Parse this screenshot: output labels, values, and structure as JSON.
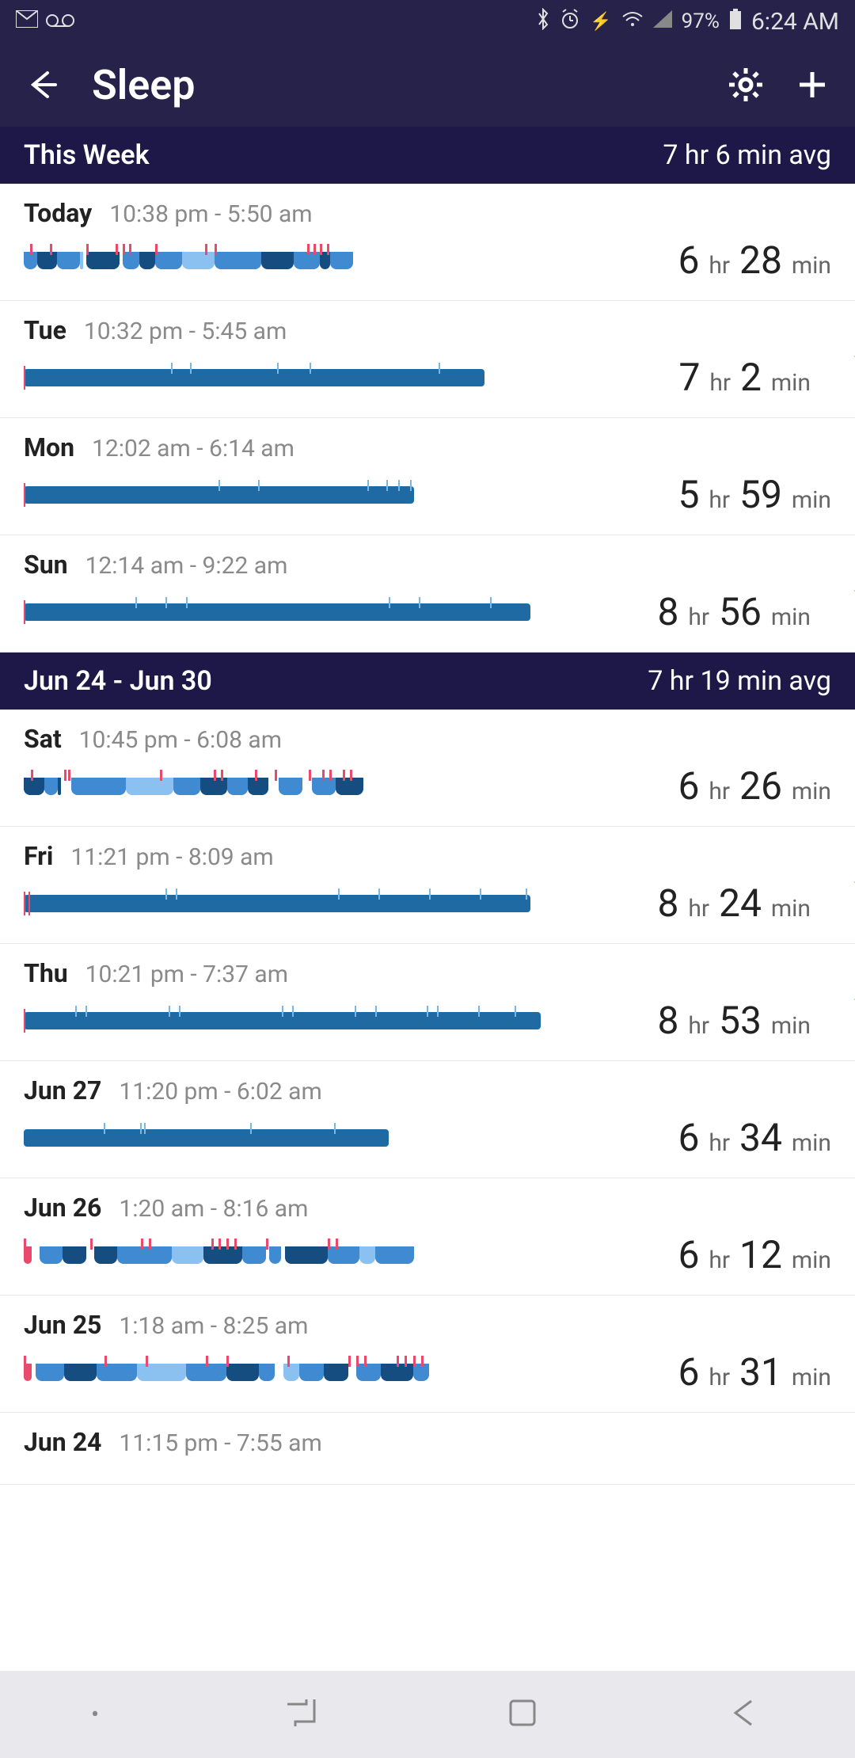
{
  "statusBar": {
    "battery": "97%",
    "time": "6:24 AM"
  },
  "header": {
    "title": "Sleep"
  },
  "colors": {
    "statusBg": "#26224a",
    "sectionBg": "#1d1847",
    "deep": "#154d80",
    "light": "#3f8ad1",
    "rem": "#8bc1f0",
    "awake": "#e84a6b",
    "star": "#6dbf2e",
    "simple": "#1f6aa3"
  },
  "sections": [
    {
      "title": "This Week",
      "avg": "7 hr 6 min avg",
      "rows": [
        {
          "day": "Today",
          "range": "10:38 pm - 5:50 am",
          "hrs": "6",
          "mins": "28",
          "star": false,
          "type": "stages",
          "width": 0.65,
          "segments": [
            {
              "s": 0.0,
              "e": 0.04,
              "c": "light"
            },
            {
              "s": 0.04,
              "e": 0.1,
              "c": "deep"
            },
            {
              "s": 0.1,
              "e": 0.17,
              "c": "light"
            },
            {
              "s": 0.17,
              "e": 0.18,
              "c": "rem"
            },
            {
              "s": 0.19,
              "e": 0.29,
              "c": "deep"
            },
            {
              "s": 0.3,
              "e": 0.35,
              "c": "light"
            },
            {
              "s": 0.35,
              "e": 0.4,
              "c": "deep"
            },
            {
              "s": 0.4,
              "e": 0.48,
              "c": "light"
            },
            {
              "s": 0.48,
              "e": 0.58,
              "c": "rem"
            },
            {
              "s": 0.58,
              "e": 0.72,
              "c": "light"
            },
            {
              "s": 0.72,
              "e": 0.82,
              "c": "deep"
            },
            {
              "s": 0.82,
              "e": 0.9,
              "c": "light"
            },
            {
              "s": 0.9,
              "e": 0.93,
              "c": "deep"
            },
            {
              "s": 0.93,
              "e": 1.0,
              "c": "light"
            }
          ],
          "ticks": [
            0.02,
            0.08,
            0.19,
            0.28,
            0.3,
            0.32,
            0.4,
            0.55,
            0.58,
            0.86,
            0.88,
            0.9,
            0.92
          ]
        },
        {
          "day": "Tue",
          "range": "10:32 pm - 5:45 am",
          "hrs": "7",
          "mins": "2",
          "star": true,
          "type": "simple",
          "width": 0.91,
          "ticks": [
            0.0,
            0.32,
            0.36,
            0.55,
            0.62,
            0.9
          ]
        },
        {
          "day": "Mon",
          "range": "12:02 am - 6:14 am",
          "hrs": "5",
          "mins": "59",
          "star": false,
          "type": "simple",
          "width": 0.77,
          "ticks": [
            0.0,
            0.5,
            0.6,
            0.88,
            0.93,
            0.96,
            0.99
          ]
        },
        {
          "day": "Sun",
          "range": "12:14 am - 9:22 am",
          "hrs": "8",
          "mins": "56",
          "star": true,
          "type": "simple",
          "width": 1.0,
          "ticks": [
            0.0,
            0.22,
            0.28,
            0.32,
            0.72,
            0.78,
            0.92
          ]
        }
      ]
    },
    {
      "title": "Jun 24 - Jun 30",
      "avg": "7 hr 19 min avg",
      "rows": [
        {
          "day": "Sat",
          "range": "10:45 pm - 6:08 am",
          "hrs": "6",
          "mins": "26",
          "star": false,
          "type": "stages",
          "width": 0.67,
          "segments": [
            {
              "s": 0.0,
              "e": 0.06,
              "c": "deep"
            },
            {
              "s": 0.06,
              "e": 0.1,
              "c": "light"
            },
            {
              "s": 0.1,
              "e": 0.11,
              "c": "deep"
            },
            {
              "s": 0.14,
              "e": 0.3,
              "c": "light"
            },
            {
              "s": 0.3,
              "e": 0.44,
              "c": "rem"
            },
            {
              "s": 0.44,
              "e": 0.52,
              "c": "light"
            },
            {
              "s": 0.52,
              "e": 0.6,
              "c": "deep"
            },
            {
              "s": 0.6,
              "e": 0.66,
              "c": "light"
            },
            {
              "s": 0.66,
              "e": 0.72,
              "c": "deep"
            },
            {
              "s": 0.75,
              "e": 0.82,
              "c": "light"
            },
            {
              "s": 0.85,
              "e": 0.92,
              "c": "light"
            },
            {
              "s": 0.92,
              "e": 1.0,
              "c": "deep"
            }
          ],
          "ticks": [
            0.02,
            0.12,
            0.13,
            0.4,
            0.56,
            0.58,
            0.68,
            0.74,
            0.84,
            0.88,
            0.9,
            0.94,
            0.96
          ]
        },
        {
          "day": "Fri",
          "range": "11:21 pm - 8:09 am",
          "hrs": "8",
          "mins": "24",
          "star": true,
          "type": "simple",
          "width": 1.0,
          "ticks": [
            0.0,
            0.01,
            0.28,
            0.3,
            0.62,
            0.7,
            0.8,
            0.9,
            0.99
          ]
        },
        {
          "day": "Thu",
          "range": "10:21 pm - 7:37 am",
          "hrs": "8",
          "mins": "53",
          "star": true,
          "type": "simple",
          "width": 1.02,
          "ticks": [
            0.0,
            0.1,
            0.12,
            0.28,
            0.3,
            0.5,
            0.52,
            0.64,
            0.68,
            0.78,
            0.8,
            0.88,
            0.95
          ]
        },
        {
          "day": "Jun 27",
          "range": "11:20 pm - 6:02 am",
          "hrs": "6",
          "mins": "34",
          "star": false,
          "type": "simple",
          "width": 0.72,
          "ticks": [
            0.22,
            0.32,
            0.33,
            0.62,
            0.85
          ]
        },
        {
          "day": "Jun 26",
          "range": "1:20 am - 8:16 am",
          "hrs": "6",
          "mins": "12",
          "star": false,
          "type": "stages",
          "width": 0.77,
          "segments": [
            {
              "s": 0.0,
              "e": 0.02,
              "c": "awake"
            },
            {
              "s": 0.04,
              "e": 0.1,
              "c": "light"
            },
            {
              "s": 0.1,
              "e": 0.16,
              "c": "deep"
            },
            {
              "s": 0.18,
              "e": 0.24,
              "c": "deep"
            },
            {
              "s": 0.24,
              "e": 0.38,
              "c": "light"
            },
            {
              "s": 0.38,
              "e": 0.46,
              "c": "rem"
            },
            {
              "s": 0.46,
              "e": 0.56,
              "c": "deep"
            },
            {
              "s": 0.56,
              "e": 0.62,
              "c": "light"
            },
            {
              "s": 0.63,
              "e": 0.66,
              "c": "light"
            },
            {
              "s": 0.67,
              "e": 0.78,
              "c": "deep"
            },
            {
              "s": 0.78,
              "e": 0.86,
              "c": "light"
            },
            {
              "s": 0.86,
              "e": 0.9,
              "c": "rem"
            },
            {
              "s": 0.9,
              "e": 1.0,
              "c": "light"
            }
          ],
          "ticks": [
            0.0,
            0.17,
            0.3,
            0.32,
            0.48,
            0.5,
            0.52,
            0.54,
            0.62,
            0.78,
            0.8
          ]
        },
        {
          "day": "Jun 25",
          "range": "1:18 am - 8:25 am",
          "hrs": "6",
          "mins": "31",
          "star": false,
          "type": "stages",
          "width": 0.8,
          "segments": [
            {
              "s": 0.0,
              "e": 0.02,
              "c": "awake"
            },
            {
              "s": 0.03,
              "e": 0.1,
              "c": "light"
            },
            {
              "s": 0.1,
              "e": 0.18,
              "c": "deep"
            },
            {
              "s": 0.18,
              "e": 0.28,
              "c": "light"
            },
            {
              "s": 0.28,
              "e": 0.4,
              "c": "rem"
            },
            {
              "s": 0.4,
              "e": 0.5,
              "c": "light"
            },
            {
              "s": 0.5,
              "e": 0.58,
              "c": "deep"
            },
            {
              "s": 0.58,
              "e": 0.62,
              "c": "light"
            },
            {
              "s": 0.64,
              "e": 0.68,
              "c": "rem"
            },
            {
              "s": 0.68,
              "e": 0.74,
              "c": "light"
            },
            {
              "s": 0.74,
              "e": 0.8,
              "c": "deep"
            },
            {
              "s": 0.82,
              "e": 0.88,
              "c": "light"
            },
            {
              "s": 0.88,
              "e": 0.96,
              "c": "deep"
            },
            {
              "s": 0.96,
              "e": 1.0,
              "c": "light"
            }
          ],
          "ticks": [
            0.0,
            0.2,
            0.3,
            0.45,
            0.5,
            0.65,
            0.8,
            0.82,
            0.84,
            0.92,
            0.94,
            0.96,
            0.98
          ]
        },
        {
          "day": "Jun 24",
          "range": "11:15 pm - 7:55 am",
          "hrs": "",
          "mins": "",
          "star": false,
          "type": "none",
          "width": 0
        }
      ]
    }
  ]
}
